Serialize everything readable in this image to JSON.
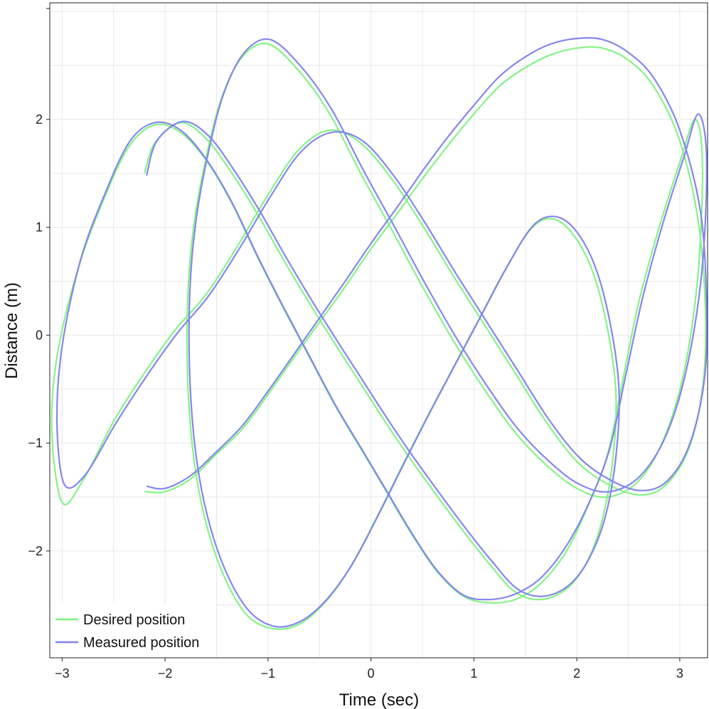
{
  "chart_data": {
    "type": "line",
    "title": "",
    "xlabel": "Time (sec)",
    "ylabel": "Distance (m)",
    "xlim": [
      -3.12,
      3.27
    ],
    "ylim": [
      -2.99,
      3.08
    ],
    "xticks": [
      -3,
      -2,
      -1,
      0,
      1,
      2,
      3
    ],
    "yticks": [
      -2,
      -1,
      0,
      1,
      2
    ],
    "grid": true,
    "legend_position": "bottom-left",
    "series": [
      {
        "name": "Desired position",
        "color": "#7ef27e",
        "x": [
          -2.2,
          -2.0,
          -1.75,
          -1.5,
          -1.25,
          -1.0,
          -0.75,
          -0.5,
          -0.25,
          0.0,
          0.25,
          0.5,
          0.75,
          1.0,
          1.25,
          1.5,
          1.75,
          2.0,
          2.25,
          2.5,
          2.75,
          3.0,
          3.18,
          3.25,
          3.22,
          3.08,
          2.85,
          2.6,
          2.3,
          2.0,
          1.7,
          1.4,
          1.1,
          0.8,
          0.5,
          0.2,
          -0.1,
          -0.4,
          -0.7,
          -1.0,
          -1.3,
          -1.6,
          -1.9,
          -2.2,
          -2.5,
          -2.8,
          -3.0,
          -3.1,
          -3.05,
          -2.85,
          -2.6,
          -2.35,
          -2.1,
          -1.85,
          -1.6,
          -1.35,
          -1.1,
          -0.85,
          -0.6,
          -0.35,
          -0.1,
          0.15,
          0.4,
          0.65,
          0.9,
          1.15,
          1.4,
          1.65,
          1.9,
          2.1,
          2.3,
          2.45,
          2.6,
          2.8,
          3.0,
          3.15,
          3.22,
          3.18,
          3.05,
          2.85,
          2.6,
          2.3,
          2.0,
          1.7,
          1.4,
          1.1,
          0.8,
          0.5,
          0.2,
          -0.1,
          -0.4,
          -0.7,
          -1.0,
          -1.25,
          -1.45,
          -1.6,
          -1.72,
          -1.78,
          -1.78,
          -1.72,
          -1.6,
          -1.42,
          -1.2,
          -0.95,
          -0.7,
          -0.45,
          -0.2,
          0.05,
          0.3,
          0.55,
          0.8,
          1.05,
          1.3,
          1.55,
          1.75,
          1.95,
          2.15,
          2.3,
          2.38,
          2.35,
          2.25,
          2.1,
          1.9,
          1.65,
          1.4,
          1.15,
          0.9,
          0.65,
          0.4,
          0.15,
          -0.1,
          -0.35,
          -0.6,
          -0.85,
          -1.1,
          -1.35,
          -1.6,
          -1.85,
          -2.1,
          -2.2
        ],
        "y": [
          -1.45,
          -1.45,
          -1.33,
          -1.1,
          -0.87,
          -0.55,
          -0.21,
          0.12,
          0.45,
          0.8,
          1.12,
          1.45,
          1.76,
          2.05,
          2.31,
          2.48,
          2.6,
          2.66,
          2.66,
          2.55,
          2.3,
          1.8,
          1.05,
          0.2,
          -0.5,
          -1.07,
          -1.4,
          -1.48,
          -1.38,
          -1.17,
          -0.8,
          -0.35,
          0.1,
          0.55,
          1.02,
          1.45,
          1.78,
          1.9,
          1.72,
          1.3,
          0.82,
          0.38,
          0.05,
          -0.35,
          -0.8,
          -1.35,
          -1.55,
          -0.9,
          -0.2,
          0.6,
          1.25,
          1.75,
          1.95,
          1.88,
          1.62,
          1.22,
          0.72,
          0.25,
          -0.2,
          -0.65,
          -1.05,
          -1.45,
          -1.85,
          -2.2,
          -2.42,
          -2.48,
          -2.45,
          -2.3,
          -2.0,
          -1.6,
          -1.1,
          -0.4,
          0.3,
          1.0,
          1.6,
          2.0,
          1.6,
          0.6,
          -0.3,
          -0.95,
          -1.35,
          -1.5,
          -1.42,
          -1.2,
          -0.9,
          -0.5,
          -0.05,
          0.45,
          0.98,
          1.5,
          2.05,
          2.45,
          2.7,
          2.58,
          2.2,
          1.65,
          1.02,
          0.35,
          -0.42,
          -1.15,
          -1.75,
          -2.25,
          -2.6,
          -2.72,
          -2.68,
          -2.48,
          -2.15,
          -1.7,
          -1.22,
          -0.75,
          -0.3,
          0.15,
          0.6,
          0.98,
          1.08,
          0.95,
          0.6,
          0.05,
          -0.55,
          -1.15,
          -1.7,
          -2.1,
          -2.35,
          -2.45,
          -2.38,
          -2.12,
          -1.82,
          -1.5,
          -1.17,
          -0.82,
          -0.45,
          -0.08,
          0.3,
          0.7,
          1.12,
          1.5,
          1.82,
          1.97,
          1.78,
          1.5
        ]
      },
      {
        "name": "Measured position",
        "color": "#7f7fef",
        "x": [
          -2.18,
          -2.0,
          -1.75,
          -1.5,
          -1.25,
          -1.0,
          -0.75,
          -0.5,
          -0.25,
          0.0,
          0.25,
          0.5,
          0.75,
          1.0,
          1.25,
          1.5,
          1.75,
          2.0,
          2.25,
          2.5,
          2.75,
          3.0,
          3.2,
          3.26,
          3.24,
          3.1,
          2.88,
          2.62,
          2.32,
          2.02,
          1.72,
          1.42,
          1.12,
          0.82,
          0.52,
          0.22,
          -0.08,
          -0.38,
          -0.68,
          -0.98,
          -1.28,
          -1.58,
          -1.88,
          -2.18,
          -2.48,
          -2.78,
          -2.98,
          -3.05,
          -3.0,
          -2.82,
          -2.58,
          -2.34,
          -2.1,
          -1.85,
          -1.6,
          -1.35,
          -1.1,
          -0.85,
          -0.6,
          -0.35,
          -0.1,
          0.15,
          0.4,
          0.65,
          0.9,
          1.15,
          1.4,
          1.65,
          1.9,
          2.12,
          2.32,
          2.48,
          2.64,
          2.84,
          3.04,
          3.18,
          3.26,
          3.22,
          3.08,
          2.88,
          2.62,
          2.32,
          2.02,
          1.72,
          1.42,
          1.12,
          0.82,
          0.52,
          0.22,
          -0.08,
          -0.38,
          -0.68,
          -0.98,
          -1.23,
          -1.43,
          -1.58,
          -1.7,
          -1.76,
          -1.76,
          -1.7,
          -1.58,
          -1.4,
          -1.18,
          -0.93,
          -0.68,
          -0.43,
          -0.18,
          0.07,
          0.32,
          0.57,
          0.82,
          1.07,
          1.32,
          1.57,
          1.78,
          1.98,
          2.18,
          2.33,
          2.41,
          2.38,
          2.28,
          2.12,
          1.92,
          1.67,
          1.42,
          1.17,
          0.92,
          0.67,
          0.42,
          0.17,
          -0.08,
          -0.33,
          -0.58,
          -0.83,
          -1.08,
          -1.33,
          -1.58,
          -1.83,
          -2.08,
          -2.18
        ],
        "y": [
          -1.4,
          -1.42,
          -1.3,
          -1.08,
          -0.84,
          -0.52,
          -0.18,
          0.16,
          0.5,
          0.85,
          1.18,
          1.52,
          1.84,
          2.13,
          2.4,
          2.58,
          2.7,
          2.75,
          2.74,
          2.62,
          2.38,
          1.9,
          1.15,
          0.3,
          -0.4,
          -1.0,
          -1.35,
          -1.44,
          -1.34,
          -1.13,
          -0.77,
          -0.32,
          0.13,
          0.58,
          1.05,
          1.48,
          1.8,
          1.88,
          1.7,
          1.28,
          0.8,
          0.36,
          0.02,
          -0.38,
          -0.82,
          -1.3,
          -1.38,
          -0.8,
          -0.1,
          0.7,
          1.32,
          1.8,
          1.97,
          1.9,
          1.63,
          1.23,
          0.73,
          0.26,
          -0.19,
          -0.64,
          -1.04,
          -1.44,
          -1.84,
          -2.19,
          -2.41,
          -2.45,
          -2.4,
          -2.25,
          -1.95,
          -1.55,
          -1.05,
          -0.35,
          0.35,
          1.05,
          1.65,
          2.05,
          1.65,
          0.65,
          -0.25,
          -0.9,
          -1.3,
          -1.45,
          -1.38,
          -1.16,
          -0.86,
          -0.46,
          -0.01,
          0.49,
          1.02,
          1.54,
          2.09,
          2.49,
          2.74,
          2.62,
          2.24,
          1.69,
          1.06,
          0.39,
          -0.38,
          -1.11,
          -1.71,
          -2.21,
          -2.56,
          -2.7,
          -2.65,
          -2.45,
          -2.12,
          -1.67,
          -1.19,
          -0.72,
          -0.27,
          0.18,
          0.63,
          1.01,
          1.1,
          0.98,
          0.63,
          0.08,
          -0.52,
          -1.12,
          -1.67,
          -2.07,
          -2.32,
          -2.42,
          -2.35,
          -2.09,
          -1.79,
          -1.47,
          -1.14,
          -0.79,
          -0.42,
          -0.05,
          0.33,
          0.73,
          1.15,
          1.53,
          1.85,
          1.98,
          1.8,
          1.48
        ]
      }
    ]
  }
}
